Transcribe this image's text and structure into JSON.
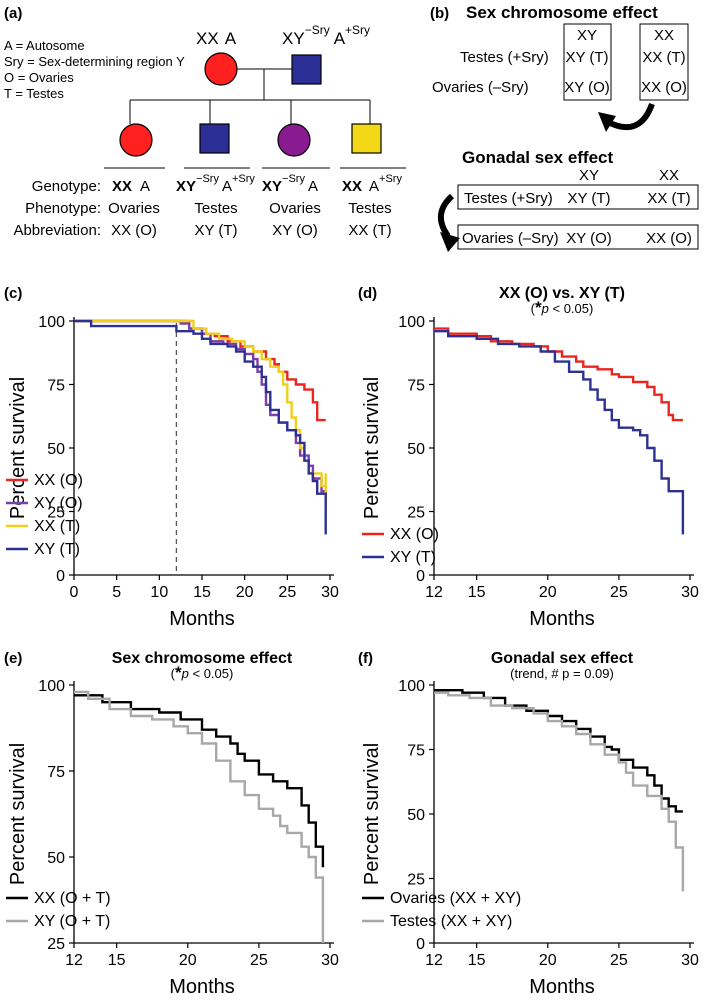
{
  "panel_a": {
    "label": "(a)",
    "legend_lines": [
      "A = Autosome",
      "Sry = Sex-determining region Y",
      "O = Ovaries",
      "T = Testes"
    ],
    "parent_female": {
      "chrom": "XX",
      "auto": "A"
    },
    "parent_male": {
      "chrom": "XY",
      "chrom_sup": "−Sry",
      "auto": "A",
      "auto_sup": "+Sry"
    },
    "row_labels": [
      "Genotype:",
      "Phenotype:",
      "Abbreviation:"
    ],
    "children": [
      {
        "chrom": "XX",
        "chrom_sup": "",
        "auto": "A",
        "auto_sup": "",
        "phenotype": "Ovaries",
        "abbr": "XX (O)",
        "color": "#ff2020",
        "shape": "circle"
      },
      {
        "chrom": "XY",
        "chrom_sup": "−Sry",
        "auto": "A",
        "auto_sup": "+Sry",
        "phenotype": "Testes",
        "abbr": "XY (T)",
        "color": "#2b2e94",
        "shape": "square"
      },
      {
        "chrom": "XY",
        "chrom_sup": "−Sry",
        "auto": "A",
        "auto_sup": "",
        "phenotype": "Ovaries",
        "abbr": "XY (O)",
        "color": "#8a1a8f",
        "shape": "circle"
      },
      {
        "chrom": "XX",
        "chrom_sup": "",
        "auto": "A",
        "auto_sup": "+Sry",
        "phenotype": "Testes",
        "abbr": "XX (T)",
        "color": "#f2d816",
        "shape": "square"
      }
    ]
  },
  "panel_b": {
    "label": "(b)",
    "title1": "Sex chromosome effect",
    "row_labels1": [
      "Testes (+Sry)",
      "Ovaries (–Sry)"
    ],
    "box1": [
      "XY",
      "XY (T)",
      "XY (O)"
    ],
    "box2": [
      "XX",
      "XX (T)",
      "XX (O)"
    ],
    "title2": "Gonadal sex effect",
    "col_heads2": [
      "XY",
      "XX"
    ],
    "row_box1": [
      "Testes (+Sry)",
      "XY (T)",
      "XX (T)"
    ],
    "row_box2": [
      "Ovaries (–Sry)",
      "XY (O)",
      "XX (O)"
    ]
  },
  "chart_data": [
    {
      "id": "c",
      "label": "(c)",
      "type": "line",
      "title": "",
      "subtitle": "",
      "xlabel": "Months",
      "ylabel": "Percent survival",
      "xlim": [
        0,
        30
      ],
      "ylim": [
        0,
        100
      ],
      "xticks": [
        0,
        5,
        10,
        15,
        20,
        25,
        30
      ],
      "yticks": [
        0,
        25,
        50,
        75,
        100
      ],
      "vline_x": 12,
      "series": [
        {
          "name": "XX (O)",
          "color": "#e8261f",
          "points": [
            [
              0,
              100
            ],
            [
              12.5,
              100
            ],
            [
              13.5,
              97
            ],
            [
              15,
              95
            ],
            [
              16.5,
              94
            ],
            [
              18,
              92
            ],
            [
              19.5,
              90
            ],
            [
              21,
              88
            ],
            [
              22.5,
              85
            ],
            [
              23.5,
              83
            ],
            [
              24,
              80
            ],
            [
              25,
              77
            ],
            [
              26,
              75
            ],
            [
              27,
              73
            ],
            [
              28,
              68
            ],
            [
              28.5,
              61
            ],
            [
              29.5,
              61
            ]
          ]
        },
        {
          "name": "XY (O)",
          "color": "#7b3fa8",
          "points": [
            [
              0,
              100
            ],
            [
              11.5,
              100
            ],
            [
              12.5,
              99
            ],
            [
              13.5,
              97
            ],
            [
              15,
              95
            ],
            [
              16,
              92
            ],
            [
              17.5,
              91
            ],
            [
              19,
              89
            ],
            [
              20,
              87
            ],
            [
              21,
              85
            ],
            [
              21.5,
              80
            ],
            [
              22,
              75
            ],
            [
              22.5,
              67
            ],
            [
              23,
              63
            ],
            [
              24,
              60
            ],
            [
              25,
              57
            ],
            [
              26,
              52
            ],
            [
              26.5,
              47
            ],
            [
              27.5,
              43
            ],
            [
              28,
              38
            ],
            [
              29,
              33
            ],
            [
              29.5,
              28
            ]
          ]
        },
        {
          "name": "XX (T)",
          "color": "#f0cf1c",
          "points": [
            [
              0,
              100
            ],
            [
              13,
              100
            ],
            [
              14,
              97
            ],
            [
              15.5,
              95
            ],
            [
              17,
              93
            ],
            [
              18.5,
              92
            ],
            [
              20,
              90
            ],
            [
              21,
              88
            ],
            [
              22,
              85
            ],
            [
              23,
              82
            ],
            [
              24,
              80
            ],
            [
              24.5,
              75
            ],
            [
              25,
              68
            ],
            [
              25.5,
              62
            ],
            [
              26,
              57
            ],
            [
              26.5,
              50
            ],
            [
              27,
              45
            ],
            [
              27.5,
              40
            ],
            [
              28.5,
              40
            ],
            [
              29,
              35
            ],
            [
              29.5,
              40
            ],
            [
              29.5,
              25
            ]
          ]
        },
        {
          "name": "XY (T)",
          "color": "#2e3192",
          "points": [
            [
              0,
              100
            ],
            [
              1.5,
              100
            ],
            [
              2,
              98
            ],
            [
              11,
              98
            ],
            [
              12,
              96
            ],
            [
              14,
              95
            ],
            [
              15,
              93
            ],
            [
              16,
              91
            ],
            [
              17,
              91
            ],
            [
              18,
              90
            ],
            [
              19,
              88
            ],
            [
              20,
              84
            ],
            [
              21,
              82
            ],
            [
              22,
              78
            ],
            [
              22.5,
              72
            ],
            [
              23,
              65
            ],
            [
              24,
              60
            ],
            [
              25,
              57
            ],
            [
              26,
              55
            ],
            [
              26.5,
              52
            ],
            [
              27,
              45
            ],
            [
              27.5,
              40
            ],
            [
              28,
              37
            ],
            [
              28.5,
              32
            ],
            [
              29,
              32
            ],
            [
              29.5,
              16
            ]
          ]
        }
      ]
    },
    {
      "id": "d",
      "label": "(d)",
      "type": "line",
      "title": "XX (O) vs. XY (T)",
      "subtitle_star": "*",
      "subtitle_p": "p",
      "subtitle_rest": " < 0.05)",
      "xlabel": "Months",
      "ylabel": "Percent survival",
      "xlim": [
        12,
        30
      ],
      "ylim": [
        0,
        100
      ],
      "xticks": [
        12,
        15,
        20,
        25,
        30
      ],
      "yticks": [
        0,
        25,
        50,
        75,
        100
      ],
      "series": [
        {
          "name": "XX (O)",
          "color": "#e8261f",
          "points": [
            [
              12,
              97
            ],
            [
              13,
              95
            ],
            [
              15,
              94
            ],
            [
              16,
              92
            ],
            [
              17.5,
              91
            ],
            [
              19,
              90
            ],
            [
              20,
              88
            ],
            [
              21,
              86
            ],
            [
              22,
              84
            ],
            [
              22.5,
              82
            ],
            [
              23.5,
              81
            ],
            [
              24.5,
              79
            ],
            [
              25,
              78
            ],
            [
              26,
              76
            ],
            [
              27,
              74
            ],
            [
              27.5,
              71
            ],
            [
              28,
              68
            ],
            [
              28.5,
              63
            ],
            [
              28.8,
              61
            ],
            [
              29.5,
              61
            ]
          ]
        },
        {
          "name": "XY (T)",
          "color": "#2e3192",
          "points": [
            [
              12,
              96
            ],
            [
              13,
              94
            ],
            [
              15,
              93
            ],
            [
              16.5,
              91
            ],
            [
              18,
              90
            ],
            [
              19.5,
              88
            ],
            [
              20.5,
              84
            ],
            [
              21.5,
              80
            ],
            [
              22.5,
              77
            ],
            [
              23,
              73
            ],
            [
              23.5,
              69
            ],
            [
              24,
              65
            ],
            [
              24.5,
              61
            ],
            [
              25,
              58
            ],
            [
              26,
              57
            ],
            [
              26.5,
              55
            ],
            [
              27,
              50
            ],
            [
              27.5,
              45
            ],
            [
              28,
              38
            ],
            [
              28.5,
              33
            ],
            [
              29,
              33
            ],
            [
              29.5,
              16
            ]
          ]
        }
      ]
    },
    {
      "id": "e",
      "label": "(e)",
      "type": "line",
      "title": "Sex chromosome effect",
      "subtitle_star": "*",
      "subtitle_p": "p",
      "subtitle_rest": " < 0.05)",
      "xlabel": "Months",
      "ylabel": "Percent survival",
      "xlim": [
        12,
        30
      ],
      "ylim": [
        25,
        100
      ],
      "xticks": [
        12,
        15,
        20,
        25,
        30
      ],
      "yticks": [
        25,
        50,
        75,
        100
      ],
      "series": [
        {
          "name": "XX (O + T)",
          "color": "#000000",
          "points": [
            [
              12,
              97
            ],
            [
              14,
              95
            ],
            [
              16,
              93
            ],
            [
              18,
              92
            ],
            [
              19.5,
              90
            ],
            [
              21,
              87
            ],
            [
              22,
              85
            ],
            [
              23,
              83
            ],
            [
              23.5,
              80
            ],
            [
              24,
              78
            ],
            [
              25,
              74
            ],
            [
              26,
              72
            ],
            [
              27,
              70
            ],
            [
              28,
              65
            ],
            [
              28.5,
              60
            ],
            [
              29,
              53
            ],
            [
              29.5,
              53
            ],
            [
              29.5,
              47
            ]
          ]
        },
        {
          "name": "XY (O + T)",
          "color": "#a8a8a8",
          "points": [
            [
              12,
              98
            ],
            [
              13,
              96
            ],
            [
              14.5,
              93
            ],
            [
              16,
              91
            ],
            [
              17.5,
              90
            ],
            [
              19,
              88
            ],
            [
              20,
              86
            ],
            [
              21,
              83
            ],
            [
              22,
              78
            ],
            [
              23,
              72
            ],
            [
              24,
              68
            ],
            [
              25,
              64
            ],
            [
              26,
              62
            ],
            [
              26.5,
              59
            ],
            [
              27,
              57
            ],
            [
              28,
              53
            ],
            [
              28.5,
              50
            ],
            [
              29,
              44
            ],
            [
              29.5,
              37
            ],
            [
              29.5,
              25
            ]
          ]
        }
      ]
    },
    {
      "id": "f",
      "label": "(f)",
      "type": "line",
      "title": "Gonadal sex effect",
      "subtitle": "(trend, # p = 0.09)",
      "xlabel": "Months",
      "ylabel": "Percent survival",
      "xlim": [
        12,
        30
      ],
      "ylim": [
        0,
        100
      ],
      "xticks": [
        12,
        15,
        20,
        25,
        30
      ],
      "yticks": [
        0,
        25,
        50,
        75,
        100
      ],
      "series": [
        {
          "name": "Ovaries (XX + XY)",
          "color": "#000000",
          "points": [
            [
              12,
              98
            ],
            [
              14,
              97
            ],
            [
              15.5,
              95
            ],
            [
              17,
              92
            ],
            [
              18.5,
              90
            ],
            [
              20,
              88
            ],
            [
              21,
              86
            ],
            [
              22,
              83
            ],
            [
              23,
              80
            ],
            [
              24,
              76
            ],
            [
              24.5,
              75
            ],
            [
              25,
              71
            ],
            [
              26,
              68
            ],
            [
              27,
              65
            ],
            [
              27.5,
              61
            ],
            [
              28,
              56
            ],
            [
              28.5,
              53
            ],
            [
              29,
              51
            ],
            [
              29.5,
              51
            ]
          ]
        },
        {
          "name": "Testes (XX + XY)",
          "color": "#a8a8a8",
          "points": [
            [
              12,
              97
            ],
            [
              13,
              96
            ],
            [
              14.5,
              95
            ],
            [
              16,
              92
            ],
            [
              17.5,
              91
            ],
            [
              19,
              89
            ],
            [
              20,
              86
            ],
            [
              21,
              84
            ],
            [
              22,
              81
            ],
            [
              23,
              77
            ],
            [
              24,
              73
            ],
            [
              25,
              70
            ],
            [
              25.5,
              66
            ],
            [
              26,
              61
            ],
            [
              27,
              57
            ],
            [
              28,
              52
            ],
            [
              28.5,
              47
            ],
            [
              29,
              37
            ],
            [
              29.3,
              37
            ],
            [
              29.5,
              20
            ]
          ]
        }
      ]
    }
  ]
}
